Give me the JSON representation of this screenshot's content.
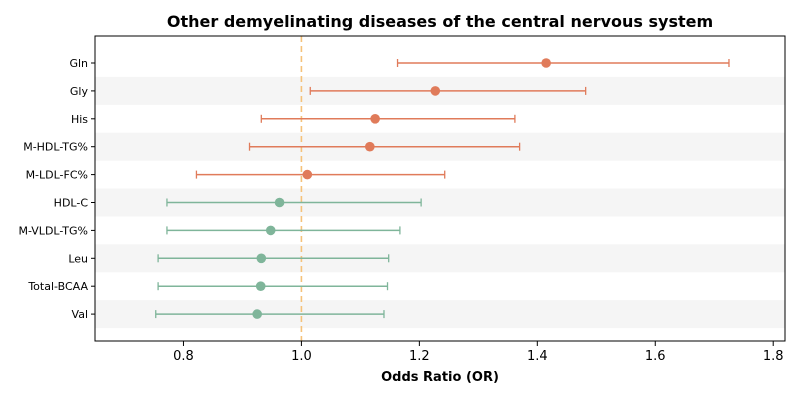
{
  "chart_data": {
    "type": "forest",
    "title": "Other demyelinating diseases of the central nervous system",
    "xlabel": "Odds Ratio (OR)",
    "xlim": [
      0.65,
      1.82
    ],
    "xticks": [
      "0.8",
      "1.0",
      "1.2",
      "1.4",
      "1.6",
      "1.8"
    ],
    "reference_line": 1.0,
    "colors": {
      "above": "#e07b5a",
      "below": "#7fb59a",
      "reference": "#f5c27a",
      "band": "#f5f5f5"
    },
    "rows": [
      {
        "label": "Gln",
        "or": 1.415,
        "lower": 1.163,
        "upper": 1.725
      },
      {
        "label": "Gly",
        "or": 1.227,
        "lower": 1.015,
        "upper": 1.482
      },
      {
        "label": "His",
        "or": 1.125,
        "lower": 0.932,
        "upper": 1.362
      },
      {
        "label": "M-HDL-TG%",
        "or": 1.116,
        "lower": 0.912,
        "upper": 1.37
      },
      {
        "label": "M-LDL-FC%",
        "or": 1.01,
        "lower": 0.822,
        "upper": 1.243
      },
      {
        "label": "HDL-C",
        "or": 0.963,
        "lower": 0.772,
        "upper": 1.203
      },
      {
        "label": "M-VLDL-TG%",
        "or": 0.948,
        "lower": 0.772,
        "upper": 1.167
      },
      {
        "label": "Leu",
        "or": 0.932,
        "lower": 0.757,
        "upper": 1.148
      },
      {
        "label": "Total-BCAA",
        "or": 0.931,
        "lower": 0.757,
        "upper": 1.146
      },
      {
        "label": "Val",
        "or": 0.925,
        "lower": 0.753,
        "upper": 1.14
      }
    ]
  }
}
